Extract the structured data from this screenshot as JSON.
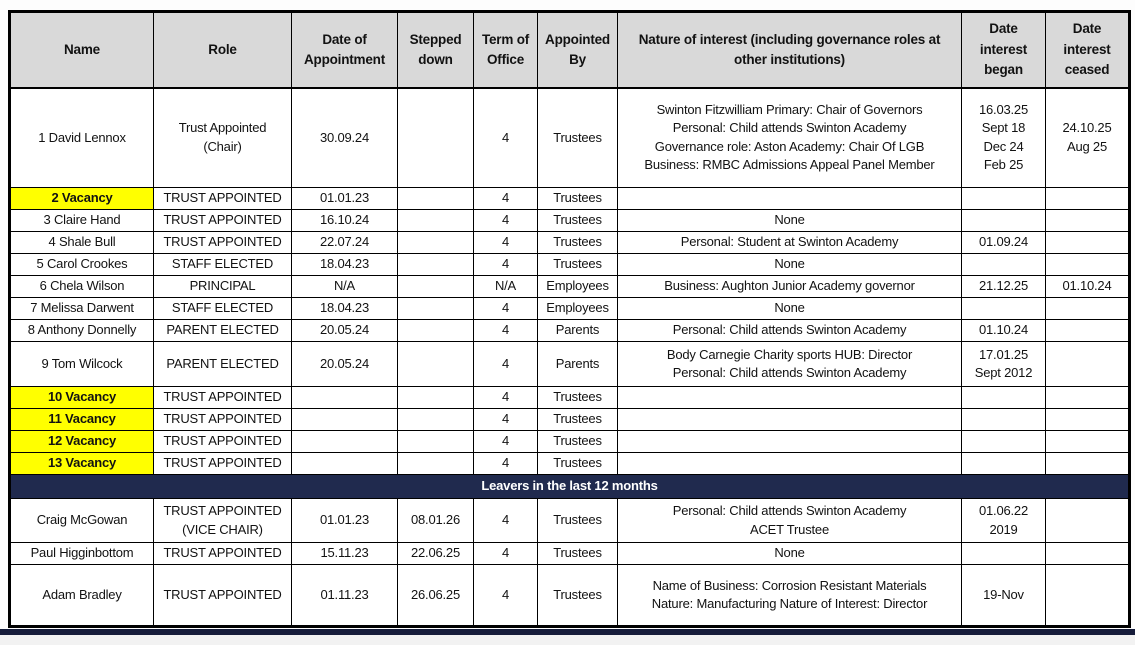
{
  "colors": {
    "header_bg": "#d9d9d9",
    "vacancy_bg": "#ffff00",
    "banner_bg": "#202a4e",
    "banner_text": "#ffffff",
    "border": "#000000",
    "bottom_bar": "#161c3a"
  },
  "table": {
    "headers": [
      {
        "key": "name",
        "label": "Name"
      },
      {
        "key": "role",
        "label": "Role"
      },
      {
        "key": "date_of_appointment",
        "label": "Date of Appointment"
      },
      {
        "key": "stepped_down",
        "label": "Stepped down"
      },
      {
        "key": "term_of_office",
        "label": "Term of Office"
      },
      {
        "key": "appointed_by",
        "label": "Appointed By"
      },
      {
        "key": "nature_of_interest",
        "label": "Nature of interest (including governance roles at other institutions)"
      },
      {
        "key": "date_interest_began",
        "label": "Date interest began"
      },
      {
        "key": "date_interest_ceased",
        "label": "Date interest ceased"
      }
    ],
    "members": [
      {
        "name": "1 David Lennox",
        "vacancy": false,
        "role": "Trust Appointed (Chair)",
        "date_of_appointment": "30.09.24",
        "stepped_down": "",
        "term_of_office": "4",
        "appointed_by": "Trustees",
        "nature_of_interest": [
          "Swinton Fitzwilliam Primary: Chair of Governors",
          "Personal: Child attends Swinton Academy",
          "Governance role: Aston Academy: Chair Of LGB",
          "Business: RMBC Admissions Appeal Panel Member"
        ],
        "date_interest_began": [
          "16.03.25",
          "Sept 18",
          "Dec 24",
          "Feb 25"
        ],
        "date_interest_ceased": [
          "24.10.25",
          "Aug 25"
        ]
      },
      {
        "name": "2 Vacancy",
        "vacancy": true,
        "role": "TRUST APPOINTED",
        "date_of_appointment": "01.01.23",
        "stepped_down": "",
        "term_of_office": "4",
        "appointed_by": "Trustees",
        "nature_of_interest": "",
        "date_interest_began": "",
        "date_interest_ceased": ""
      },
      {
        "name": "3 Claire Hand",
        "vacancy": false,
        "role": "TRUST APPOINTED",
        "date_of_appointment": "16.10.24",
        "stepped_down": "",
        "term_of_office": "4",
        "appointed_by": "Trustees",
        "nature_of_interest": "None",
        "date_interest_began": "",
        "date_interest_ceased": ""
      },
      {
        "name": "4 Shale Bull",
        "vacancy": false,
        "role": "TRUST APPOINTED",
        "date_of_appointment": "22.07.24",
        "stepped_down": "",
        "term_of_office": "4",
        "appointed_by": "Trustees",
        "nature_of_interest": "Personal: Student at Swinton Academy",
        "date_interest_began": "01.09.24",
        "date_interest_ceased": ""
      },
      {
        "name": "5 Carol Crookes",
        "vacancy": false,
        "role": "STAFF ELECTED",
        "date_of_appointment": "18.04.23",
        "stepped_down": "",
        "term_of_office": "4",
        "appointed_by": "Trustees",
        "nature_of_interest": "None",
        "date_interest_began": "",
        "date_interest_ceased": ""
      },
      {
        "name": "6 Chela Wilson",
        "vacancy": false,
        "role": "PRINCIPAL",
        "date_of_appointment": "N/A",
        "stepped_down": "",
        "term_of_office": "N/A",
        "appointed_by": "Employees",
        "nature_of_interest": "Business: Aughton Junior Academy governor",
        "date_interest_began": "21.12.25",
        "date_interest_ceased": "01.10.24"
      },
      {
        "name": "7 Melissa Darwent",
        "vacancy": false,
        "role": "STAFF ELECTED",
        "date_of_appointment": "18.04.23",
        "stepped_down": "",
        "term_of_office": "4",
        "appointed_by": "Employees",
        "nature_of_interest": "None",
        "date_interest_began": "",
        "date_interest_ceased": ""
      },
      {
        "name": "8 Anthony Donnelly",
        "vacancy": false,
        "role": "PARENT ELECTED",
        "date_of_appointment": "20.05.24",
        "stepped_down": "",
        "term_of_office": "4",
        "appointed_by": "Parents",
        "nature_of_interest": "Personal: Child attends Swinton Academy",
        "date_interest_began": "01.10.24",
        "date_interest_ceased": ""
      },
      {
        "name": "9 Tom Wilcock",
        "vacancy": false,
        "role": "PARENT ELECTED",
        "date_of_appointment": "20.05.24",
        "stepped_down": "",
        "term_of_office": "4",
        "appointed_by": "Parents",
        "nature_of_interest": [
          "Body Carnegie Charity sports HUB: Director",
          "Personal: Child attends Swinton Academy"
        ],
        "date_interest_began": [
          "17.01.25",
          "Sept 2012"
        ],
        "date_interest_ceased": ""
      },
      {
        "name": "10 Vacancy",
        "vacancy": true,
        "role": "TRUST APPOINTED",
        "date_of_appointment": "",
        "stepped_down": "",
        "term_of_office": "4",
        "appointed_by": "Trustees",
        "nature_of_interest": "",
        "date_interest_began": "",
        "date_interest_ceased": ""
      },
      {
        "name": "11 Vacancy",
        "vacancy": true,
        "role": "TRUST APPOINTED",
        "date_of_appointment": "",
        "stepped_down": "",
        "term_of_office": "4",
        "appointed_by": "Trustees",
        "nature_of_interest": "",
        "date_interest_began": "",
        "date_interest_ceased": ""
      },
      {
        "name": "12 Vacancy",
        "vacancy": true,
        "role": "TRUST APPOINTED",
        "date_of_appointment": "",
        "stepped_down": "",
        "term_of_office": "4",
        "appointed_by": "Trustees",
        "nature_of_interest": "",
        "date_interest_began": "",
        "date_interest_ceased": ""
      },
      {
        "name": "13 Vacancy",
        "vacancy": true,
        "role": "TRUST APPOINTED",
        "date_of_appointment": "",
        "stepped_down": "",
        "term_of_office": "4",
        "appointed_by": "Trustees",
        "nature_of_interest": "",
        "date_interest_began": "",
        "date_interest_ceased": ""
      }
    ],
    "leavers_banner": "Leavers in the last 12 months",
    "leavers": [
      {
        "name": "Craig McGowan",
        "vacancy": false,
        "role": "TRUST APPOINTED (VICE CHAIR)",
        "date_of_appointment": "01.01.23",
        "stepped_down": "08.01.26",
        "term_of_office": "4",
        "appointed_by": "Trustees",
        "nature_of_interest": [
          "Personal: Child attends Swinton Academy",
          "ACET Trustee"
        ],
        "date_interest_began": [
          "01.06.22",
          "2019"
        ],
        "date_interest_ceased": ""
      },
      {
        "name": "Paul Higginbottom",
        "vacancy": false,
        "role": "TRUST APPOINTED",
        "date_of_appointment": "15.11.23",
        "stepped_down": "22.06.25",
        "term_of_office": "4",
        "appointed_by": "Trustees",
        "nature_of_interest": "None",
        "date_interest_began": "",
        "date_interest_ceased": ""
      },
      {
        "name": "Adam Bradley",
        "vacancy": false,
        "role": "TRUST APPOINTED",
        "date_of_appointment": "01.11.23",
        "stepped_down": "26.06.25",
        "term_of_office": "4",
        "appointed_by": "Trustees",
        "nature_of_interest": [
          "Name of Business: Corrosion Resistant Materials",
          "Nature: Manufacturing Nature of Interest: Director"
        ],
        "date_interest_began": "19-Nov",
        "date_interest_ceased": ""
      }
    ]
  }
}
